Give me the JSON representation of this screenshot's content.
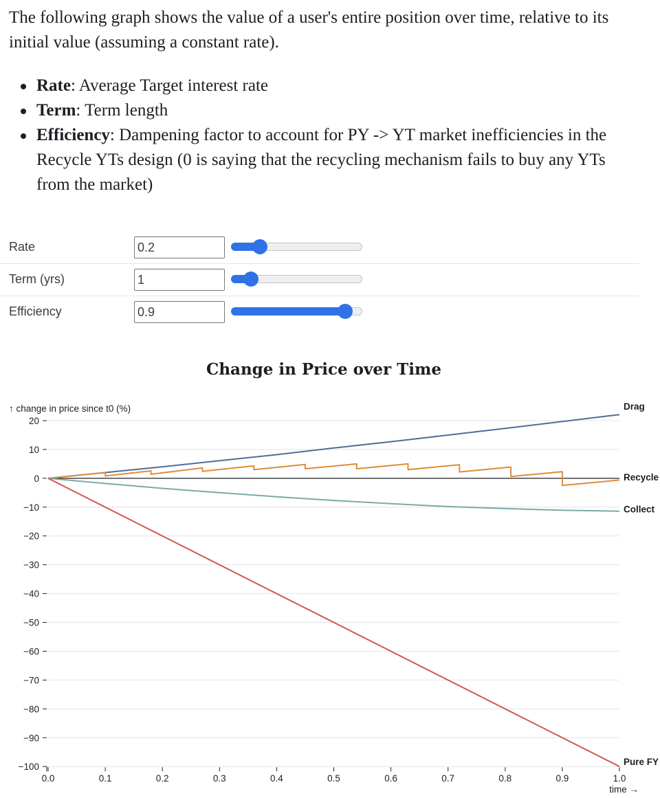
{
  "intro": {
    "text": "The following graph shows the value of a user's entire position over time, relative to its initial value (assuming a constant rate)."
  },
  "bullets": [
    {
      "term": "Rate",
      "desc": ": Average Target interest rate"
    },
    {
      "term": "Term",
      "desc": ": Term length"
    },
    {
      "term": "Efficiency",
      "desc": ": Dampening factor to account for PY -> YT market inefficiencies in the Recycle YTs design (0 is saying that the recycling mechanism fails to buy any YTs from the market)"
    }
  ],
  "controls": [
    {
      "label": "Rate",
      "value": "0.2",
      "slider_fraction": 0.22
    },
    {
      "label": "Term (yrs)",
      "value": "1",
      "slider_fraction": 0.15
    },
    {
      "label": "Efficiency",
      "value": "0.9",
      "slider_fraction": 0.87
    }
  ],
  "slider_color": "#2f72e6",
  "chart_title": "Change in Price over Time",
  "chart_data": {
    "type": "line",
    "title": "Change in Price over Time",
    "ylabel": "↑ change in price since t0 (%)",
    "xlabel": "time →",
    "xlim": [
      0,
      1
    ],
    "ylim": [
      -100,
      22
    ],
    "x_ticks": [
      0.0,
      0.1,
      0.2,
      0.3,
      0.4,
      0.5,
      0.6,
      0.7,
      0.8,
      0.9,
      1.0
    ],
    "x_tick_labels": [
      "0.0",
      "0.1",
      "0.2",
      "0.3",
      "0.4",
      "0.5",
      "0.6",
      "0.7",
      "0.8",
      "0.9",
      "1.0"
    ],
    "y_ticks": [
      20,
      10,
      0,
      -10,
      -20,
      -30,
      -40,
      -50,
      -60,
      -70,
      -80,
      -90,
      -100
    ],
    "y_tick_labels": [
      "20",
      "10",
      "0",
      "−10",
      "−20",
      "−30",
      "−40",
      "−50",
      "−60",
      "−70",
      "−80",
      "−90",
      "−100"
    ],
    "grid": "horizontal",
    "legend": "direct labels at right end of lines",
    "series": [
      {
        "name": "Drag",
        "color": "#4e6e97",
        "points": [
          [
            0,
            0
          ],
          [
            0.1,
            2
          ],
          [
            0.2,
            4
          ],
          [
            0.3,
            6.1
          ],
          [
            0.4,
            8.2
          ],
          [
            0.5,
            10.5
          ],
          [
            0.6,
            12.7
          ],
          [
            0.7,
            15
          ],
          [
            0.8,
            17.3
          ],
          [
            0.9,
            19.7
          ],
          [
            1.0,
            22.1
          ]
        ]
      },
      {
        "name": "Recycle",
        "color": "#e08b35",
        "points": [
          [
            0,
            0
          ],
          [
            0.1,
            2
          ],
          [
            0.1,
            0.8
          ],
          [
            0.18,
            2.6
          ],
          [
            0.18,
            1.4
          ],
          [
            0.27,
            3.6
          ],
          [
            0.27,
            2.4
          ],
          [
            0.36,
            4.3
          ],
          [
            0.36,
            3
          ],
          [
            0.45,
            4.8
          ],
          [
            0.45,
            3.3
          ],
          [
            0.54,
            5
          ],
          [
            0.54,
            3.3
          ],
          [
            0.63,
            5
          ],
          [
            0.63,
            3
          ],
          [
            0.72,
            4.7
          ],
          [
            0.72,
            2.2
          ],
          [
            0.81,
            3.9
          ],
          [
            0.81,
            0.6
          ],
          [
            0.9,
            2.3
          ],
          [
            0.9,
            -2.5
          ],
          [
            1.0,
            -0.6
          ]
        ]
      },
      {
        "name": "Collect",
        "color": "#79aaa8",
        "points": [
          [
            0,
            0
          ],
          [
            0.1,
            -1.8
          ],
          [
            0.2,
            -3.5
          ],
          [
            0.3,
            -5
          ],
          [
            0.4,
            -6.4
          ],
          [
            0.5,
            -7.7
          ],
          [
            0.6,
            -8.8
          ],
          [
            0.7,
            -9.8
          ],
          [
            0.8,
            -10.5
          ],
          [
            0.9,
            -11.1
          ],
          [
            1.0,
            -11.4
          ]
        ]
      },
      {
        "name": "Pure FY",
        "color": "#d1574e",
        "points": [
          [
            0,
            0
          ],
          [
            1.0,
            -100
          ]
        ]
      }
    ]
  }
}
